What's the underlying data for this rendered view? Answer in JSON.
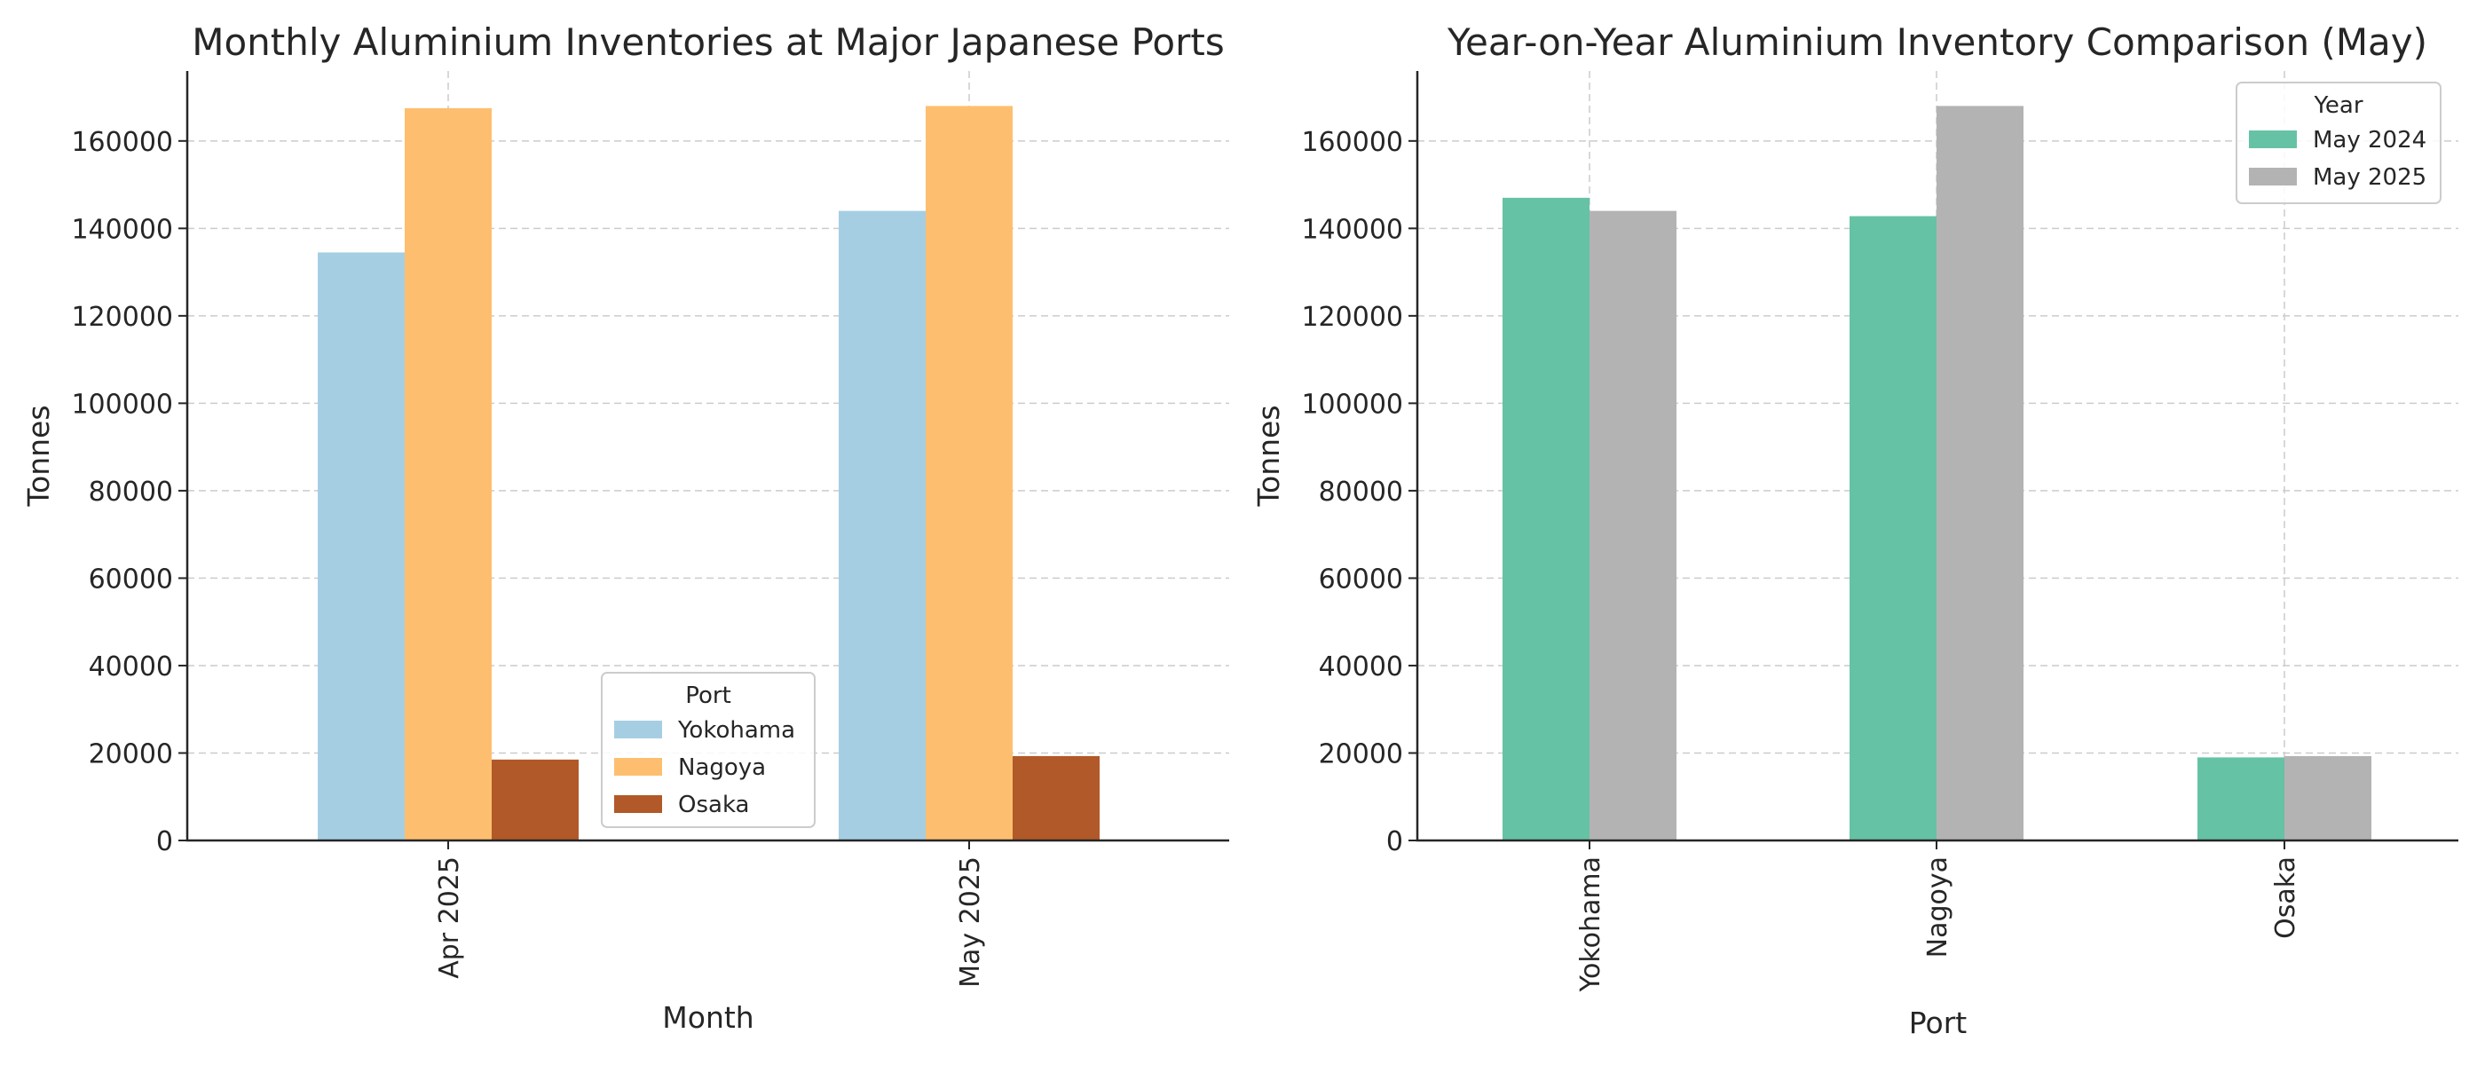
{
  "chart_data": [
    {
      "type": "bar",
      "title": "Monthly Aluminium Inventories at Major Japanese Ports",
      "xlabel": "Month",
      "ylabel": "Tonnes",
      "categories": [
        "Apr 2025",
        "May 2025"
      ],
      "series": [
        {
          "name": "Yokohama",
          "values": [
            134500,
            144000
          ],
          "color": "#a6cee3"
        },
        {
          "name": "Nagoya",
          "values": [
            167500,
            168000
          ],
          "color": "#fdbf6f"
        },
        {
          "name": "Osaka",
          "values": [
            18500,
            19300
          ],
          "color": "#b15928"
        }
      ],
      "yticks": [
        0,
        20000,
        40000,
        60000,
        80000,
        100000,
        120000,
        140000,
        160000
      ],
      "ylim": [
        0,
        176000
      ],
      "grid": true,
      "legend": {
        "title": "Port",
        "position": "lower-center-right"
      }
    },
    {
      "type": "bar",
      "title": "Year-on-Year Aluminium Inventory Comparison (May)",
      "xlabel": "Port",
      "ylabel": "Tonnes",
      "categories": [
        "Yokohama",
        "Nagoya",
        "Osaka"
      ],
      "series": [
        {
          "name": "May 2024",
          "values": [
            147000,
            142800,
            19000
          ],
          "color": "#66c2a5"
        },
        {
          "name": "May 2025",
          "values": [
            144000,
            168000,
            19300
          ],
          "color": "#b3b3b3"
        }
      ],
      "yticks": [
        0,
        20000,
        40000,
        60000,
        80000,
        100000,
        120000,
        140000,
        160000
      ],
      "ylim": [
        0,
        176000
      ],
      "grid": true,
      "legend": {
        "title": "Year",
        "position": "top-right"
      }
    }
  ]
}
